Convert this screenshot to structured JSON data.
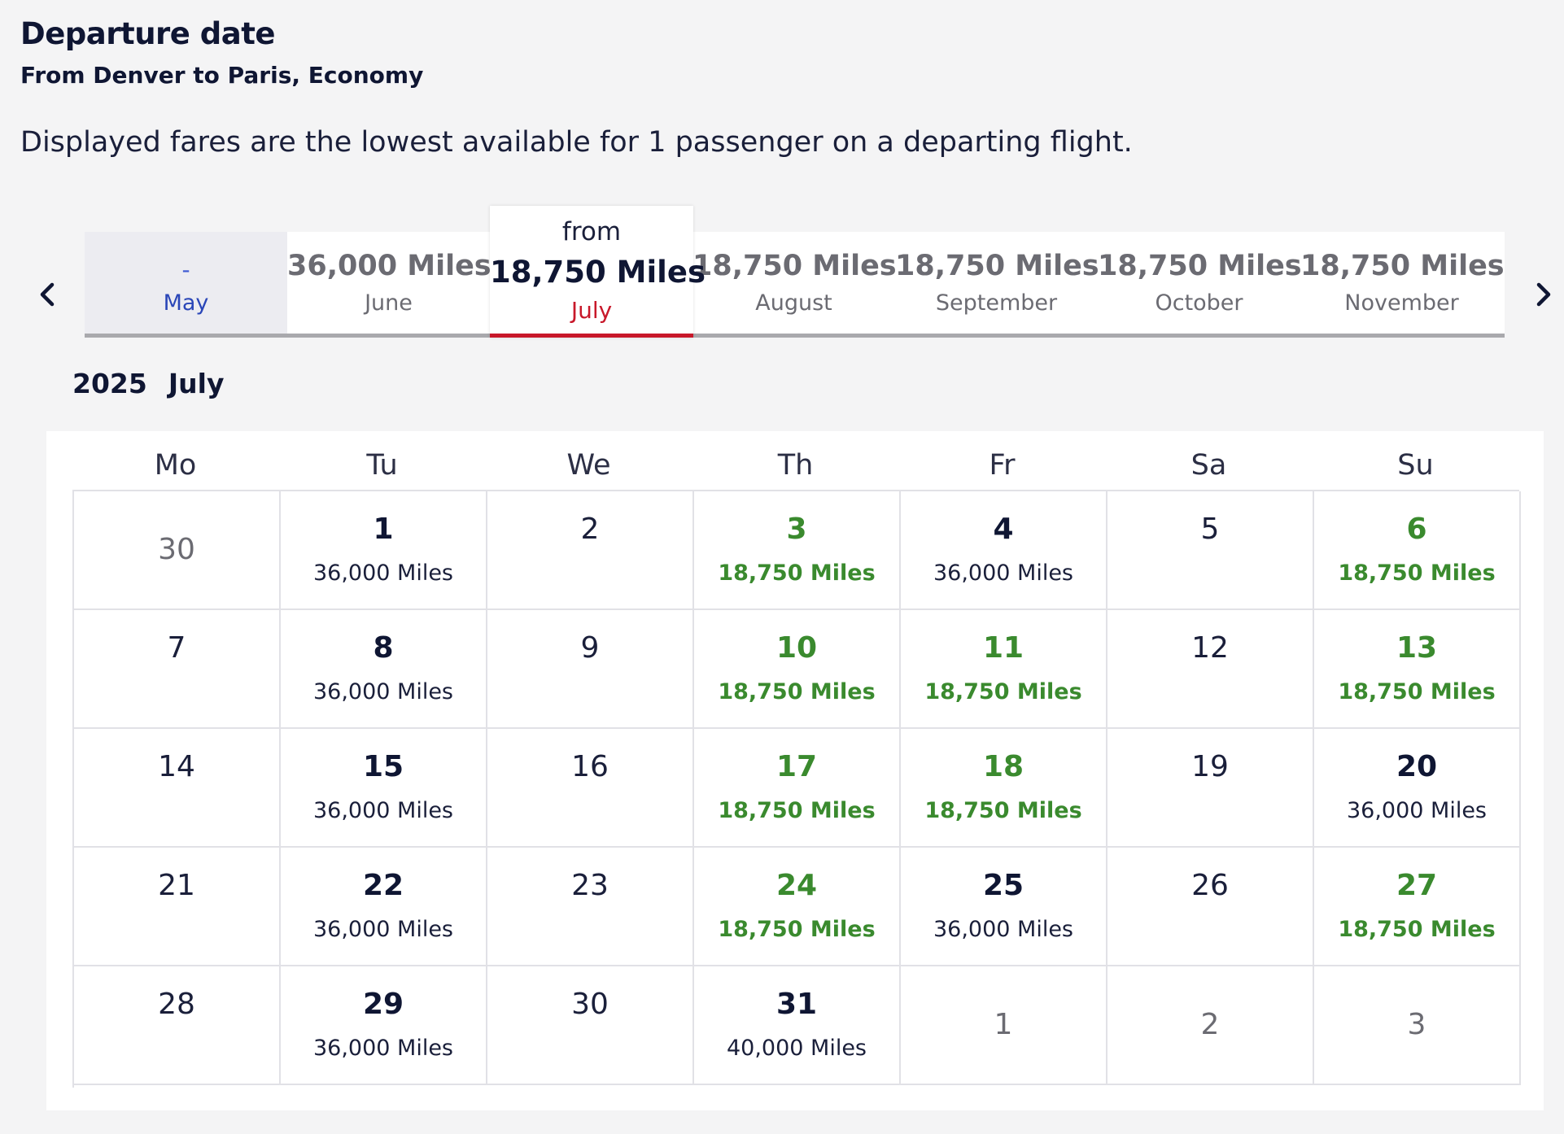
{
  "header": {
    "title": "Departure date",
    "subtitle": "From Denver to Paris, Economy",
    "note": "Displayed fares are the lowest available for 1 passenger on a departing flight."
  },
  "icons": {
    "prev": "chevron-left-icon",
    "next": "chevron-right-icon"
  },
  "colors": {
    "accent_red": "#c8182a",
    "low_fare_green": "#3a8a2e",
    "text_navy": "#0f1633"
  },
  "months": [
    {
      "miles": "-",
      "name": "May"
    },
    {
      "miles": "36,000 Miles",
      "name": "June"
    },
    {
      "from": "from",
      "miles": "18,750 Miles",
      "name": "July",
      "active": true
    },
    {
      "miles": "18,750 Miles",
      "name": "August"
    },
    {
      "miles": "18,750 Miles",
      "name": "September"
    },
    {
      "miles": "18,750 Miles",
      "name": "October"
    },
    {
      "miles": "18,750 Miles",
      "name": "November"
    }
  ],
  "calendar": {
    "year": "2025",
    "month": "July",
    "weekdays": [
      "Mo",
      "Tu",
      "We",
      "Th",
      "Fr",
      "Sa",
      "Su"
    ],
    "weeks": [
      [
        {
          "day": "30",
          "price": "",
          "type": "other"
        },
        {
          "day": "1",
          "price": "36,000 Miles",
          "type": "normal"
        },
        {
          "day": "2",
          "price": "",
          "type": "none"
        },
        {
          "day": "3",
          "price": "18,750 Miles",
          "type": "cheap"
        },
        {
          "day": "4",
          "price": "36,000 Miles",
          "type": "normal"
        },
        {
          "day": "5",
          "price": "",
          "type": "none"
        },
        {
          "day": "6",
          "price": "18,750 Miles",
          "type": "cheap"
        }
      ],
      [
        {
          "day": "7",
          "price": "",
          "type": "none"
        },
        {
          "day": "8",
          "price": "36,000 Miles",
          "type": "normal"
        },
        {
          "day": "9",
          "price": "",
          "type": "none"
        },
        {
          "day": "10",
          "price": "18,750 Miles",
          "type": "cheap"
        },
        {
          "day": "11",
          "price": "18,750 Miles",
          "type": "cheap"
        },
        {
          "day": "12",
          "price": "",
          "type": "none"
        },
        {
          "day": "13",
          "price": "18,750 Miles",
          "type": "cheap"
        }
      ],
      [
        {
          "day": "14",
          "price": "",
          "type": "none"
        },
        {
          "day": "15",
          "price": "36,000 Miles",
          "type": "normal"
        },
        {
          "day": "16",
          "price": "",
          "type": "none"
        },
        {
          "day": "17",
          "price": "18,750 Miles",
          "type": "cheap"
        },
        {
          "day": "18",
          "price": "18,750 Miles",
          "type": "cheap"
        },
        {
          "day": "19",
          "price": "",
          "type": "none"
        },
        {
          "day": "20",
          "price": "36,000 Miles",
          "type": "normal"
        }
      ],
      [
        {
          "day": "21",
          "price": "",
          "type": "none"
        },
        {
          "day": "22",
          "price": "36,000 Miles",
          "type": "normal"
        },
        {
          "day": "23",
          "price": "",
          "type": "none"
        },
        {
          "day": "24",
          "price": "18,750 Miles",
          "type": "cheap"
        },
        {
          "day": "25",
          "price": "36,000 Miles",
          "type": "normal"
        },
        {
          "day": "26",
          "price": "",
          "type": "none"
        },
        {
          "day": "27",
          "price": "18,750 Miles",
          "type": "cheap"
        }
      ],
      [
        {
          "day": "28",
          "price": "",
          "type": "none"
        },
        {
          "day": "29",
          "price": "36,000 Miles",
          "type": "normal"
        },
        {
          "day": "30",
          "price": "",
          "type": "none"
        },
        {
          "day": "31",
          "price": "40,000 Miles",
          "type": "normal"
        },
        {
          "day": "1",
          "price": "",
          "type": "other"
        },
        {
          "day": "2",
          "price": "",
          "type": "other"
        },
        {
          "day": "3",
          "price": "",
          "type": "other"
        }
      ]
    ]
  }
}
